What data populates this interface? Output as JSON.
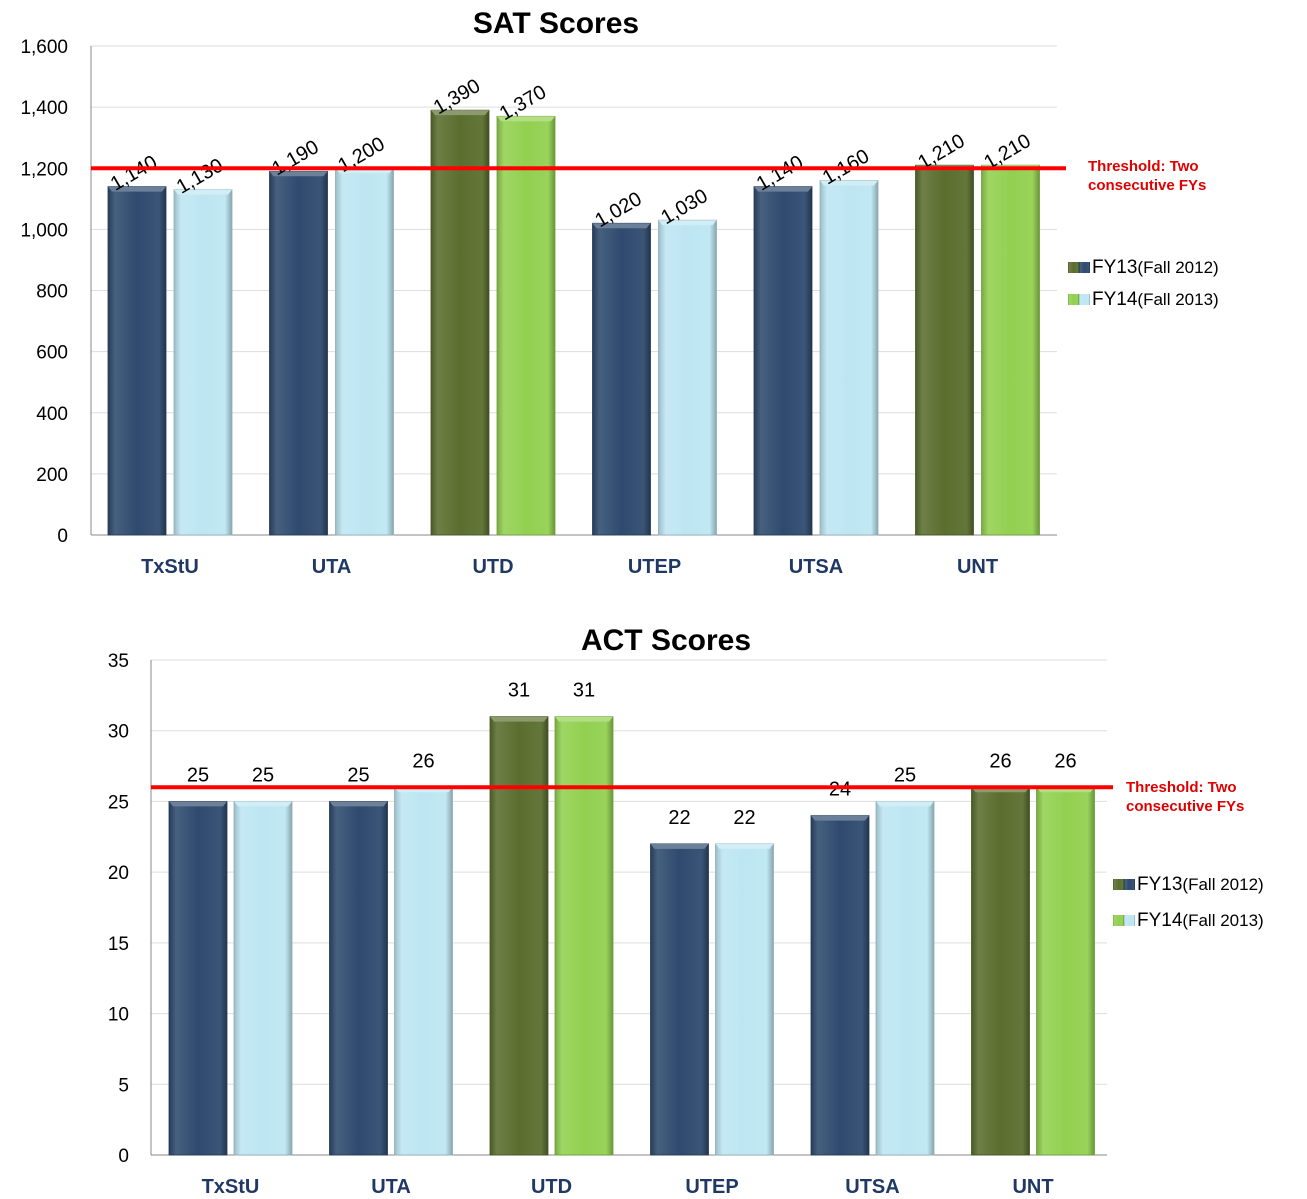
{
  "chart_data": [
    {
      "type": "bar",
      "title": "SAT Scores",
      "categories": [
        "TxStU",
        "UTA",
        "UTD",
        "UTEP",
        "UTSA",
        "UNT"
      ],
      "series": [
        {
          "name": "FY13",
          "values": [
            1140,
            1190,
            1390,
            1020,
            1140,
            1210
          ]
        },
        {
          "name": "FY14",
          "values": [
            1130,
            1200,
            1370,
            1030,
            1160,
            1210
          ]
        }
      ],
      "data_labels": [
        [
          "1,140",
          "1,190",
          "1,390",
          "1,020",
          "1,140",
          "1,210"
        ],
        [
          "1,130",
          "1,200",
          "1,370",
          "1,030",
          "1,160",
          "1,210"
        ]
      ],
      "yticks": [
        "0",
        "200",
        "400",
        "600",
        "800",
        "1,000",
        "1,200",
        "1,400",
        "1,600"
      ],
      "ylim": [
        0,
        1600
      ],
      "legend": [
        {
          "name": "FY13",
          "note": "(Fall 2012)"
        },
        {
          "name": "FY14",
          "note": "(Fall 2013)"
        }
      ],
      "legend_position": "right",
      "threshold": {
        "value": 1200,
        "label_lines": [
          "Threshold: Two",
          "consecutive FYs"
        ]
      },
      "highlighted_categories": [
        "UTD",
        "UNT"
      ],
      "colors": {
        "fy13": "#2e4a6e",
        "fy14": "#bde6f2",
        "fy13_highlight": "#5a6e2e",
        "fy14_highlight": "#92d050",
        "threshold": "#ff0000"
      },
      "grid": true
    },
    {
      "type": "bar",
      "title": "ACT Scores",
      "categories": [
        "TxStU",
        "UTA",
        "UTD",
        "UTEP",
        "UTSA",
        "UNT"
      ],
      "series": [
        {
          "name": "FY13",
          "values": [
            25,
            25,
            31,
            22,
            24,
            26
          ]
        },
        {
          "name": "FY14",
          "values": [
            25,
            26,
            31,
            22,
            25,
            26
          ]
        }
      ],
      "data_labels": [
        [
          "25",
          "25",
          "31",
          "22",
          "24",
          "26"
        ],
        [
          "25",
          "26",
          "31",
          "22",
          "25",
          "26"
        ]
      ],
      "yticks": [
        "0",
        "5",
        "10",
        "15",
        "20",
        "25",
        "30",
        "35"
      ],
      "ylim": [
        0,
        35
      ],
      "legend": [
        {
          "name": "FY13",
          "note": "(Fall 2012)"
        },
        {
          "name": "FY14",
          "note": "(Fall 2013)"
        }
      ],
      "legend_position": "right",
      "threshold": {
        "value": 26,
        "label_lines": [
          "Threshold: Two",
          "consecutive FYs"
        ]
      },
      "highlighted_categories": [
        "UTD",
        "UNT"
      ],
      "colors": {
        "fy13": "#2e4a6e",
        "fy14": "#bde6f2",
        "fy13_highlight": "#5a6e2e",
        "fy14_highlight": "#92d050",
        "threshold": "#ff0000"
      },
      "grid": true
    }
  ]
}
